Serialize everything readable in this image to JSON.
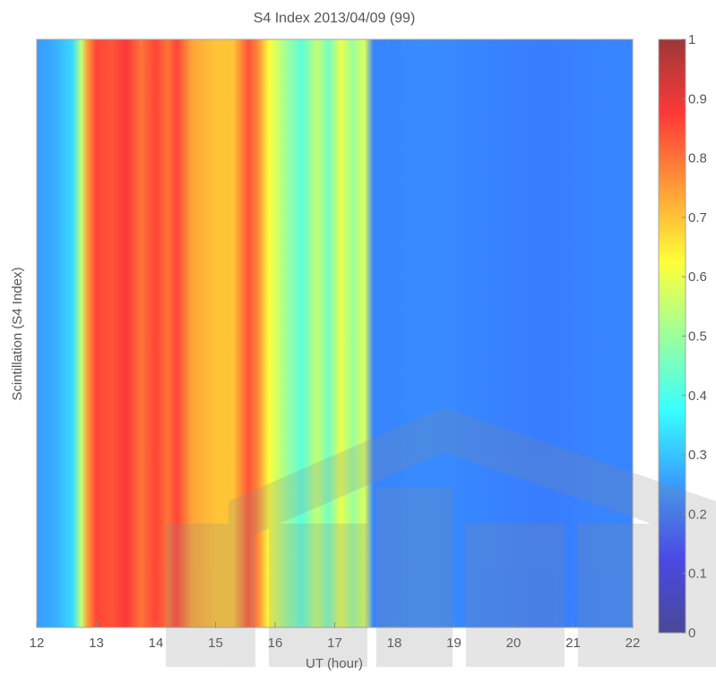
{
  "chart_data": {
    "type": "heatmap",
    "title": "S4 Index 2013/04/09 (99)",
    "xlabel": "UT (hour)",
    "ylabel": "Scintillation (S4 Index)",
    "xlim": [
      12,
      22
    ],
    "x_ticks": [
      "12",
      "13",
      "14",
      "15",
      "16",
      "17",
      "18",
      "19",
      "20",
      "21",
      "22"
    ],
    "colorbar": {
      "range": [
        0,
        1
      ],
      "ticks": [
        "0",
        "0.1",
        "0.2",
        "0.3",
        "0.4",
        "0.5",
        "0.6",
        "0.7",
        "0.8",
        "0.9",
        "1"
      ],
      "colormap": "jet"
    },
    "x": [
      12.0,
      12.3,
      12.6,
      12.75,
      12.85,
      13.0,
      13.25,
      13.5,
      13.75,
      14.0,
      14.2,
      14.35,
      14.6,
      15.0,
      15.3,
      15.55,
      15.7,
      15.9,
      16.2,
      16.45,
      16.7,
      16.9,
      17.1,
      17.3,
      17.5,
      17.65,
      17.8,
      18.5,
      19.5,
      20.5,
      21.5,
      22.0
    ],
    "values": [
      0.25,
      0.27,
      0.33,
      0.55,
      0.75,
      0.86,
      0.84,
      0.88,
      0.8,
      0.86,
      0.8,
      0.86,
      0.74,
      0.7,
      0.7,
      0.84,
      0.78,
      0.62,
      0.5,
      0.42,
      0.55,
      0.45,
      0.6,
      0.5,
      0.58,
      0.22,
      0.22,
      0.23,
      0.22,
      0.21,
      0.22,
      0.22
    ]
  },
  "watermark": {
    "color": "#8a8a8a"
  }
}
